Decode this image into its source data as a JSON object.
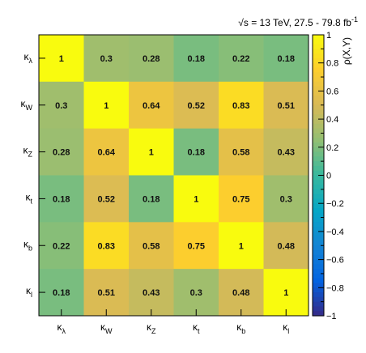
{
  "chart_data": {
    "type": "heatmap",
    "title": "√s = 13 TeV, 27.5 - 79.8 fb⁻¹",
    "title_parts": {
      "root": "√",
      "var": "s",
      "mid": " = 13 TeV, 27.5 - 79.8 fb",
      "exp": "-1"
    },
    "zlabel": "ρ(X,Y)",
    "zlim": [
      -1,
      1
    ],
    "colorbar_ticks": [
      "1",
      "0.8",
      "0.6",
      "0.4",
      "0.2",
      "0",
      "−0.2",
      "−0.4",
      "−0.6",
      "−0.8",
      "−1"
    ],
    "categories": [
      {
        "sym": "κ",
        "sub": "λ"
      },
      {
        "sym": "κ",
        "sub": "W"
      },
      {
        "sym": "κ",
        "sub": "Z"
      },
      {
        "sym": "κ",
        "sub": "t"
      },
      {
        "sym": "κ",
        "sub": "b"
      },
      {
        "sym": "κ",
        "sub": "l"
      }
    ],
    "matrix": [
      [
        1,
        0.3,
        0.28,
        0.18,
        0.22,
        0.18
      ],
      [
        0.3,
        1,
        0.64,
        0.52,
        0.83,
        0.51
      ],
      [
        0.28,
        0.64,
        1,
        0.18,
        0.58,
        0.43
      ],
      [
        0.18,
        0.52,
        0.18,
        1,
        0.75,
        0.3
      ],
      [
        0.22,
        0.83,
        0.58,
        0.75,
        1,
        0.48
      ],
      [
        0.18,
        0.51,
        0.43,
        0.3,
        0.48,
        1
      ]
    ],
    "labels": [
      [
        "1",
        "0.3",
        "0.28",
        "0.18",
        "0.22",
        "0.18"
      ],
      [
        "0.3",
        "1",
        "0.64",
        "0.52",
        "0.83",
        "0.51"
      ],
      [
        "0.28",
        "0.64",
        "1",
        "0.18",
        "0.58",
        "0.43"
      ],
      [
        "0.18",
        "0.52",
        "0.18",
        "1",
        "0.75",
        "0.3"
      ],
      [
        "0.22",
        "0.83",
        "0.58",
        "0.75",
        "1",
        "0.48"
      ],
      [
        "0.18",
        "0.51",
        "0.43",
        "0.3",
        "0.48",
        "1"
      ]
    ],
    "colorscale": [
      "#352a87",
      "#0363e1",
      "#1485d4",
      "#06a7c6",
      "#38b99e",
      "#92bf73",
      "#d9ba56",
      "#fcce2e",
      "#f9fb0e"
    ]
  }
}
